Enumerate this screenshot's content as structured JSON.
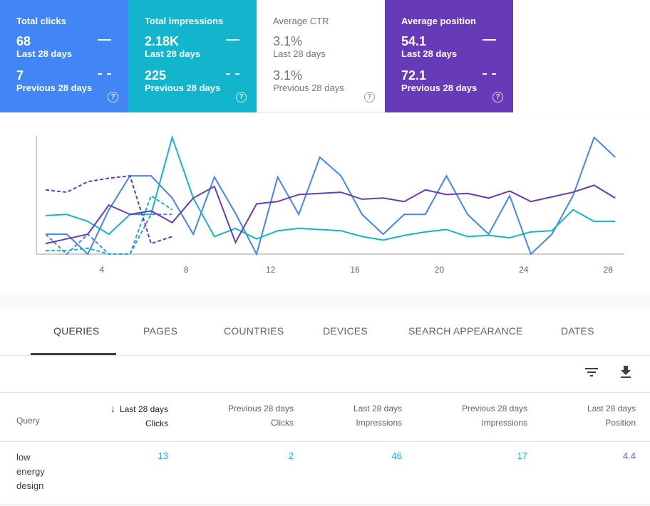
{
  "cards": [
    {
      "title": "Total clicks",
      "current": "68",
      "current_period": "Last 28 days",
      "previous": "7",
      "previous_period": "Previous 28 days",
      "help": "?",
      "color": "#4285f4"
    },
    {
      "title": "Total impressions",
      "current": "2.18K",
      "current_period": "Last 28 days",
      "previous": "225",
      "previous_period": "Previous 28 days",
      "help": "?",
      "color": "#12b5cb"
    },
    {
      "title": "Average CTR",
      "current": "3.1%",
      "current_period": "Last 28 days",
      "previous": "3.1%",
      "previous_period": "Previous 28 days",
      "help": "?",
      "color": "#ffffff"
    },
    {
      "title": "Average position",
      "current": "54.1",
      "current_period": "Last 28 days",
      "previous": "72.1",
      "previous_period": "Previous 28 days",
      "help": "?",
      "color": "#673ab7"
    }
  ],
  "chart_data": {
    "type": "line",
    "x_ticks": [
      "4",
      "8",
      "12",
      "16",
      "20",
      "24",
      "28"
    ],
    "series": [
      {
        "color": "#4285f4",
        "style": "solid",
        "values": [
          [
            1,
            0.17
          ],
          [
            2,
            0.17
          ],
          [
            3,
            0.0
          ],
          [
            4,
            0.38
          ],
          [
            5,
            0.67
          ],
          [
            6,
            0.67
          ],
          [
            7,
            0.48
          ],
          [
            8,
            0.17
          ],
          [
            9,
            0.66
          ],
          [
            10,
            0.35
          ],
          [
            11,
            0.0
          ],
          [
            12,
            0.66
          ],
          [
            13,
            0.34
          ],
          [
            14,
            0.83
          ],
          [
            15,
            0.67
          ],
          [
            16,
            0.34
          ],
          [
            17,
            0.17
          ],
          [
            18,
            0.34
          ],
          [
            19,
            0.34
          ],
          [
            20,
            0.67
          ],
          [
            21,
            0.34
          ],
          [
            22,
            0.17
          ],
          [
            23,
            0.5
          ],
          [
            24,
            0.0
          ],
          [
            25,
            0.17
          ],
          [
            26,
            0.5
          ],
          [
            27,
            1.0
          ],
          [
            28,
            0.83
          ]
        ]
      },
      {
        "color": "#4285f4",
        "style": "dashed",
        "values": [
          [
            1,
            0.17
          ],
          [
            2,
            0.0
          ],
          [
            3,
            0.17
          ],
          [
            4,
            0.0
          ],
          [
            5,
            0.0
          ],
          [
            6,
            0.34
          ],
          [
            7,
            0.34
          ]
        ]
      },
      {
        "color": "#12b5cb",
        "style": "solid",
        "values": [
          [
            1,
            0.33
          ],
          [
            2,
            0.34
          ],
          [
            3,
            0.28
          ],
          [
            4,
            0.17
          ],
          [
            5,
            0.34
          ],
          [
            6,
            0.34
          ],
          [
            7,
            1.0
          ],
          [
            8,
            0.48
          ],
          [
            9,
            0.15
          ],
          [
            10,
            0.22
          ],
          [
            11,
            0.13
          ],
          [
            12,
            0.2
          ],
          [
            13,
            0.22
          ],
          [
            14,
            0.21
          ],
          [
            15,
            0.2
          ],
          [
            16,
            0.15
          ],
          [
            17,
            0.12
          ],
          [
            18,
            0.16
          ],
          [
            19,
            0.19
          ],
          [
            20,
            0.21
          ],
          [
            21,
            0.15
          ],
          [
            22,
            0.16
          ],
          [
            23,
            0.14
          ],
          [
            24,
            0.19
          ],
          [
            25,
            0.2
          ],
          [
            26,
            0.38
          ],
          [
            27,
            0.28
          ],
          [
            28,
            0.28
          ]
        ]
      },
      {
        "color": "#12b5cb",
        "style": "dashed",
        "values": [
          [
            1,
            0.03
          ],
          [
            2,
            0.03
          ],
          [
            3,
            0.05
          ],
          [
            4,
            0.0
          ],
          [
            5,
            0.0
          ],
          [
            6,
            0.5
          ],
          [
            7,
            0.38
          ]
        ]
      },
      {
        "color": "#673ab7",
        "style": "solid",
        "values": [
          [
            1,
            0.09
          ],
          [
            2,
            0.13
          ],
          [
            3,
            0.17
          ],
          [
            4,
            0.42
          ],
          [
            5,
            0.34
          ],
          [
            6,
            0.37
          ],
          [
            7,
            0.27
          ],
          [
            8,
            0.48
          ],
          [
            9,
            0.58
          ],
          [
            10,
            0.1
          ],
          [
            11,
            0.43
          ],
          [
            12,
            0.45
          ],
          [
            13,
            0.51
          ],
          [
            14,
            0.52
          ],
          [
            15,
            0.53
          ],
          [
            16,
            0.47
          ],
          [
            17,
            0.48
          ],
          [
            18,
            0.45
          ],
          [
            19,
            0.55
          ],
          [
            20,
            0.51
          ],
          [
            21,
            0.52
          ],
          [
            22,
            0.48
          ],
          [
            23,
            0.54
          ],
          [
            24,
            0.45
          ],
          [
            25,
            0.49
          ],
          [
            26,
            0.53
          ],
          [
            27,
            0.59
          ],
          [
            28,
            0.48
          ]
        ]
      },
      {
        "color": "#673ab7",
        "style": "dashed",
        "values": [
          [
            1,
            0.55
          ],
          [
            2,
            0.53
          ],
          [
            3,
            0.62
          ],
          [
            4,
            0.65
          ],
          [
            5,
            0.67
          ],
          [
            6,
            0.09
          ],
          [
            7,
            0.15
          ]
        ]
      }
    ]
  },
  "tabs": [
    "QUERIES",
    "PAGES",
    "COUNTRIES",
    "DEVICES",
    "SEARCH APPEARANCE",
    "DATES"
  ],
  "toolbar": {
    "filter_icon": "filter-icon",
    "download_icon": "download-icon"
  },
  "table": {
    "query_header": "Query",
    "sort_arrow": "↓",
    "columns": [
      {
        "line1": "Last 28 days",
        "line2": "Clicks"
      },
      {
        "line1": "Previous 28 days",
        "line2": "Clicks"
      },
      {
        "line1": "Last 28 days",
        "line2": "Impressions"
      },
      {
        "line1": "Previous 28 days",
        "line2": "Impressions"
      },
      {
        "line1": "Last 28 days",
        "line2": "Position"
      }
    ],
    "rows": [
      {
        "query_lines": [
          "low",
          "energy",
          "design"
        ],
        "values": [
          "13",
          "2",
          "46",
          "17",
          "4.4"
        ]
      }
    ]
  }
}
